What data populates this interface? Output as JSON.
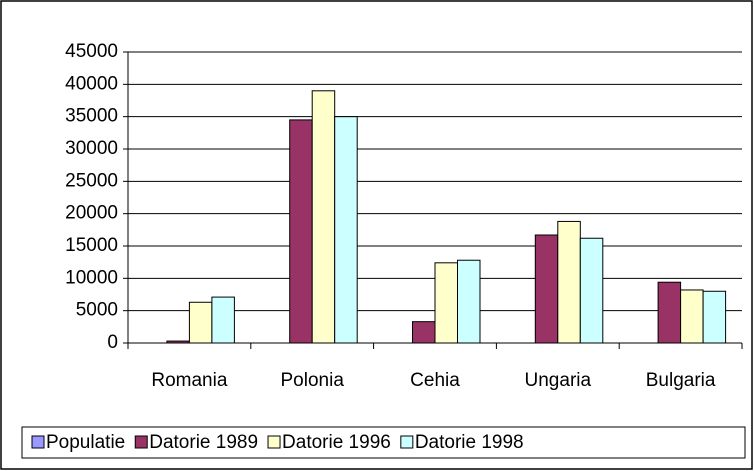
{
  "chart_data": {
    "type": "bar",
    "categories": [
      "Romania",
      "Polonia",
      "Cehia",
      "Ungaria",
      "Bulgaria"
    ],
    "series": [
      {
        "name": "Populatie",
        "color": "#9999ff",
        "values": [
          0,
          0,
          0,
          0,
          0
        ]
      },
      {
        "name": "Datorie 1989",
        "color": "#993366",
        "values": [
          300,
          34500,
          3300,
          16700,
          9400
        ]
      },
      {
        "name": "Datorie 1996",
        "color": "#ffffcc",
        "values": [
          6300,
          39000,
          12400,
          18800,
          8200
        ]
      },
      {
        "name": "Datorie 1998",
        "color": "#ccffff",
        "values": [
          7100,
          35000,
          12800,
          16200,
          8000
        ]
      }
    ],
    "ylim": [
      0,
      45000
    ],
    "yticks": [
      0,
      5000,
      10000,
      15000,
      20000,
      25000,
      30000,
      35000,
      40000,
      45000
    ],
    "grid": true,
    "legend": "bottom"
  }
}
